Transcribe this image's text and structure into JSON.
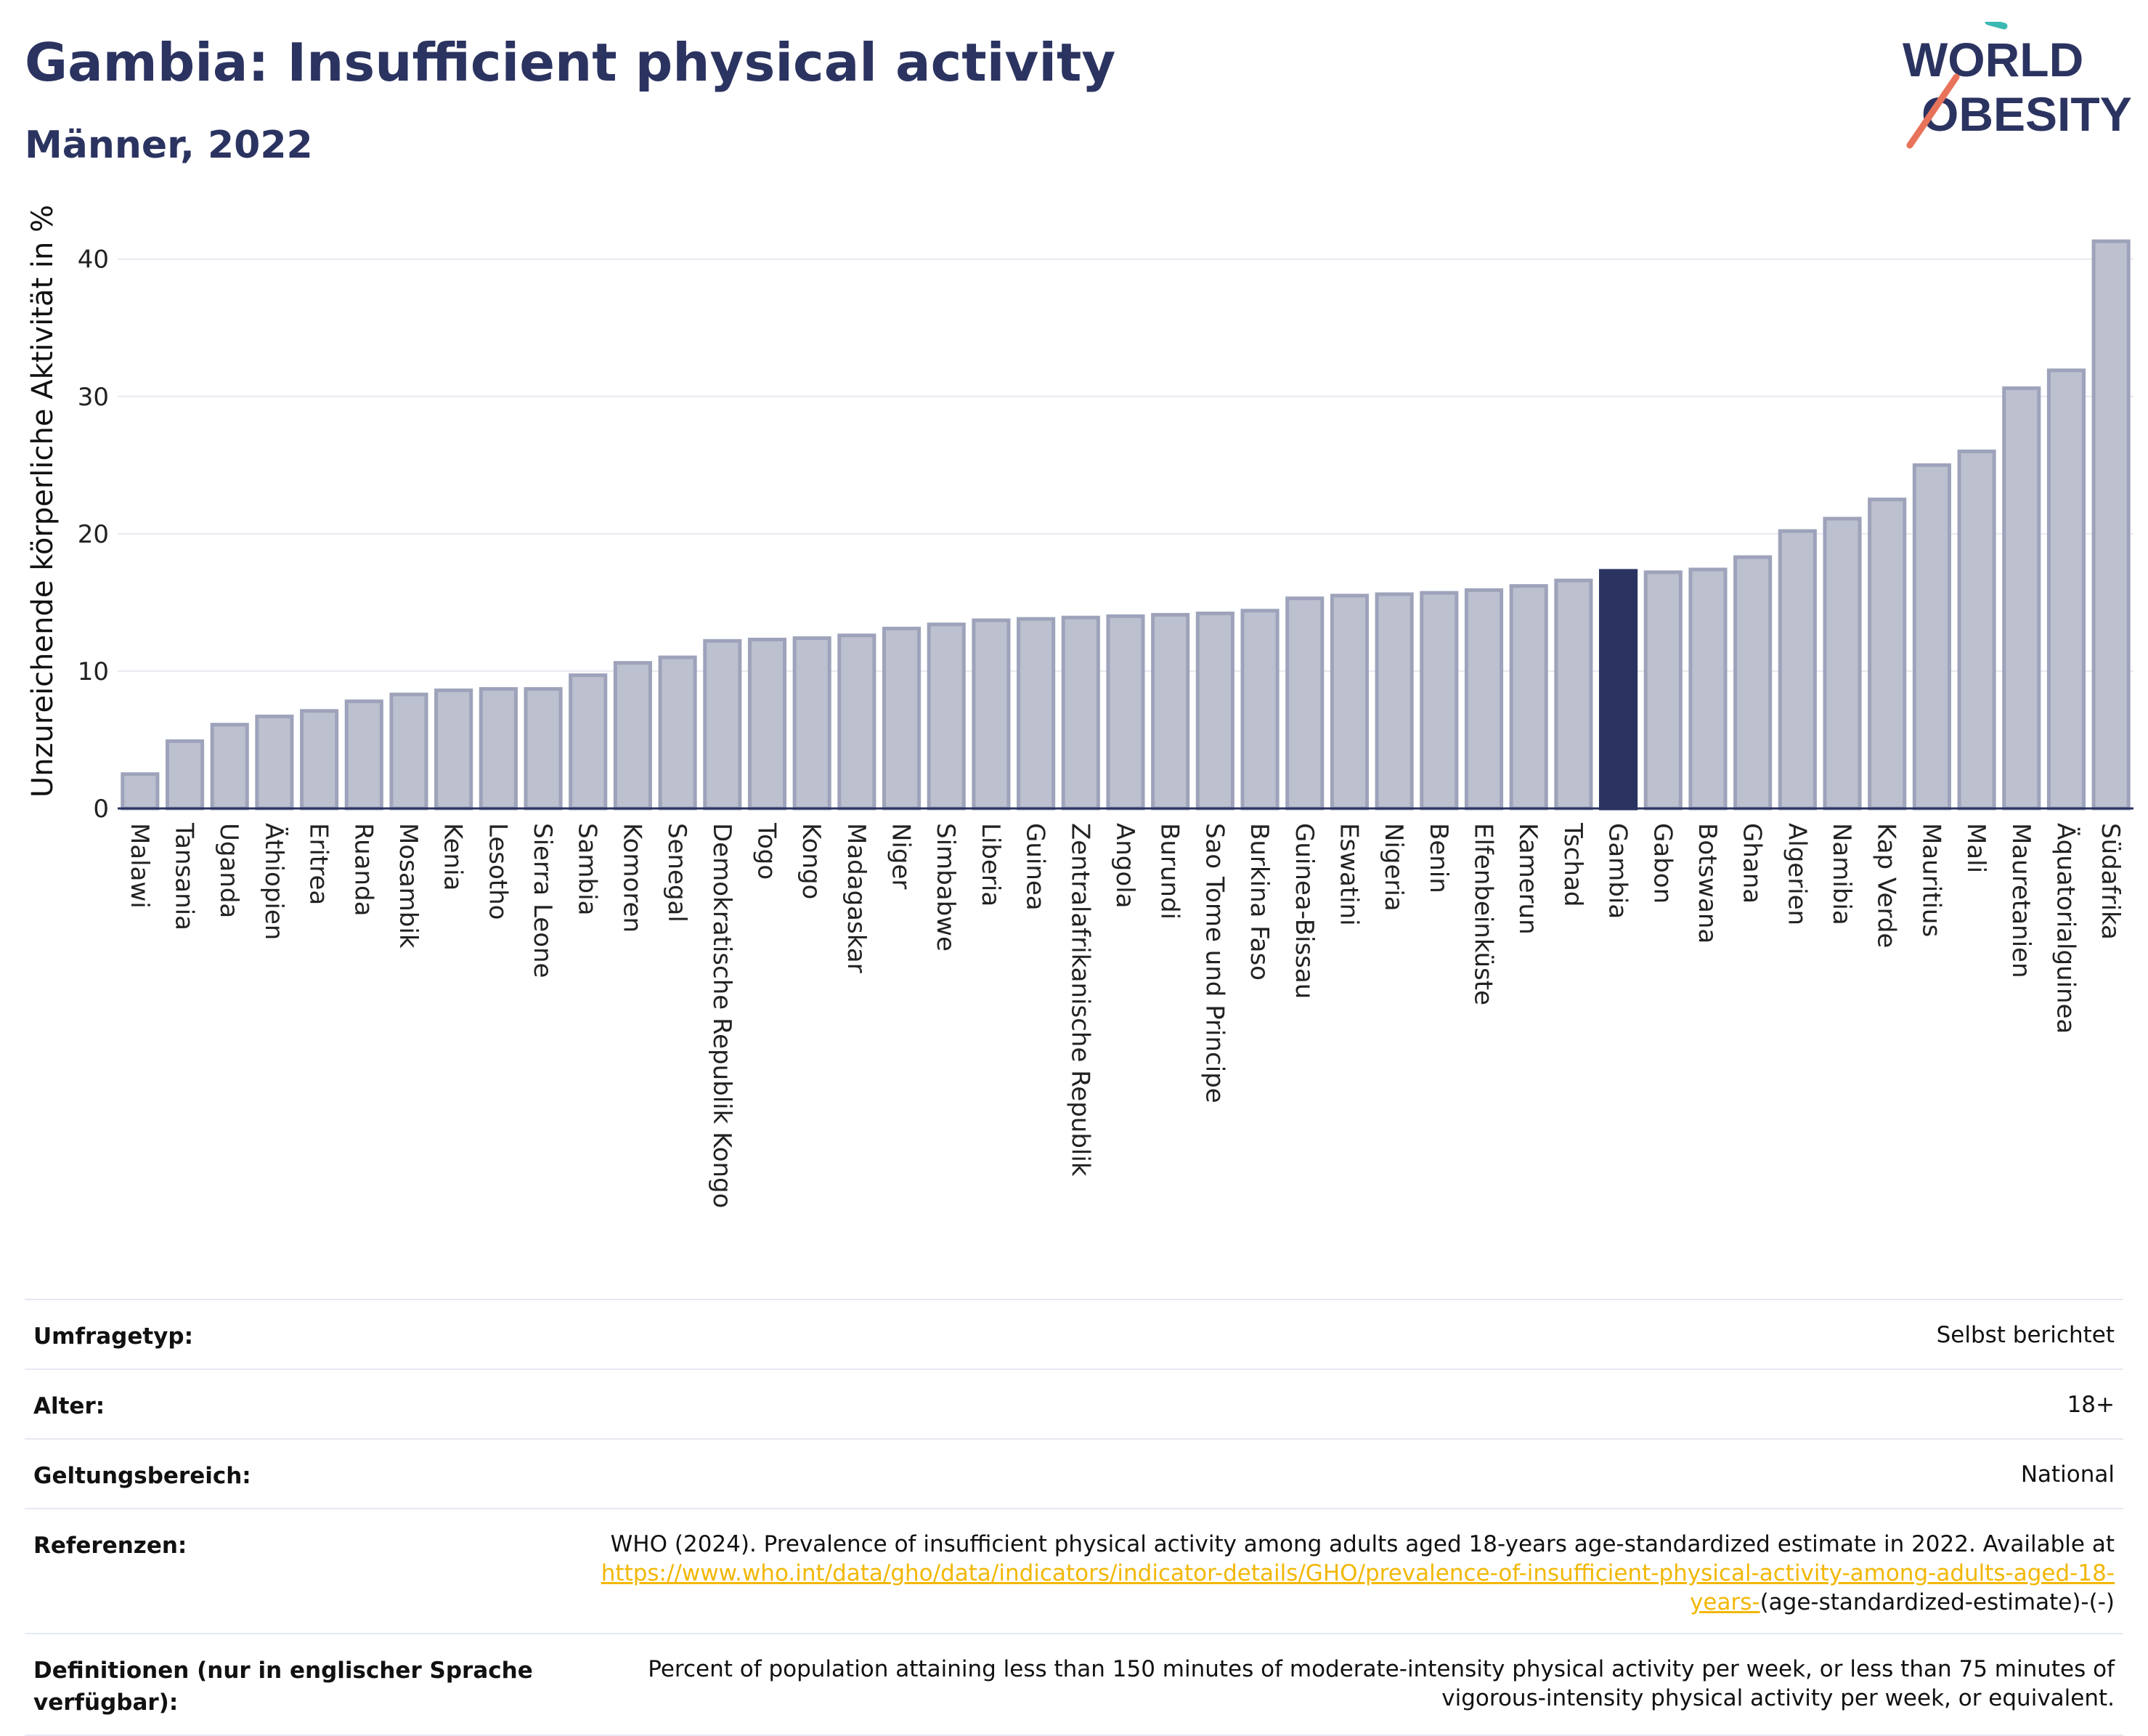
{
  "header": {
    "title": "Gambia: Insufficient physical activity",
    "subtitle": "Männer, 2022"
  },
  "logo": {
    "line1": "WORLD",
    "line2": "OBESITY",
    "accent_teal": "#3bb8b3",
    "accent_coral": "#e8735a"
  },
  "colors": {
    "bar": "#bcc0cf",
    "bar_edge": "#9ea3bb",
    "highlight": "#2b3360",
    "grid": "#e8eaf0"
  },
  "chart_data": {
    "type": "bar",
    "ylabel": "Unzureichende körperliche Aktivität in %",
    "ylim": [
      0,
      43
    ],
    "yticks": [
      0,
      10,
      20,
      30,
      40
    ],
    "highlight": "Gambia",
    "grid": true,
    "categories": [
      "Malawi",
      "Tansania",
      "Uganda",
      "Äthiopien",
      "Eritrea",
      "Ruanda",
      "Mosambik",
      "Kenia",
      "Lesotho",
      "Sierra Leone",
      "Sambia",
      "Komoren",
      "Senegal",
      "Demokratische Republik Kongo",
      "Togo",
      "Kongo",
      "Madagaskar",
      "Niger",
      "Simbabwe",
      "Liberia",
      "Guinea",
      "Zentralafrikanische Republik",
      "Angola",
      "Burundi",
      "Sao Tome und Principe",
      "Burkina Faso",
      "Guinea-Bissau",
      "Eswatini",
      "Nigeria",
      "Benin",
      "Elfenbeinküste",
      "Kamerun",
      "Tschad",
      "Gambia",
      "Gabon",
      "Botswana",
      "Ghana",
      "Algerien",
      "Namibia",
      "Kap Verde",
      "Mauritius",
      "Mali",
      "Mauretanien",
      "Äquatorialguinea",
      "Südafrika"
    ],
    "values": [
      2.5,
      4.9,
      6.1,
      6.7,
      7.1,
      7.8,
      8.3,
      8.6,
      8.7,
      8.7,
      9.7,
      10.6,
      11.0,
      12.2,
      12.3,
      12.4,
      12.6,
      13.1,
      13.4,
      13.7,
      13.8,
      13.9,
      14.0,
      14.1,
      14.2,
      14.4,
      15.3,
      15.5,
      15.6,
      15.7,
      15.9,
      16.2,
      16.6,
      17.3,
      17.2,
      17.4,
      18.3,
      20.2,
      21.1,
      22.5,
      25.0,
      26.0,
      30.6,
      31.9,
      41.3
    ]
  },
  "meta": {
    "rows": [
      {
        "label": "Umfragetyp:",
        "value": "Selbst berichtet"
      },
      {
        "label": "Alter:",
        "value": "18+"
      },
      {
        "label": "Geltungsbereich:",
        "value": "National"
      }
    ],
    "references": {
      "label": "Referenzen:",
      "text": "WHO (2024). Prevalence of insufficient physical activity among adults aged 18-years age-standardized estimate in 2022. Available at",
      "link": "https://www.who.int/data/gho/data/indicators/indicator-details/GHO/prevalence-of-insufficient-physical-activity-among-adults-aged-18-years-",
      "suffix": "(age-standardized-estimate)-(-)"
    },
    "definitions": {
      "label": "Definitionen (nur in englischer Sprache verfügbar):",
      "value": "Percent of population attaining less than 150 minutes of moderate-intensity physical activity per week, or less than 75 minutes of vigorous-intensity physical activity per week, or equivalent."
    }
  }
}
